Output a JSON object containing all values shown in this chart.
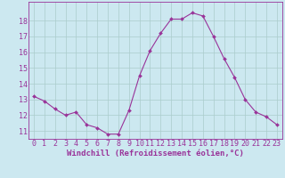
{
  "x": [
    0,
    1,
    2,
    3,
    4,
    5,
    6,
    7,
    8,
    9,
    10,
    11,
    12,
    13,
    14,
    15,
    16,
    17,
    18,
    19,
    20,
    21,
    22,
    23
  ],
  "y": [
    13.2,
    12.9,
    12.4,
    12.0,
    12.2,
    11.4,
    11.2,
    10.8,
    10.8,
    12.3,
    14.5,
    16.1,
    17.2,
    18.1,
    18.1,
    18.5,
    18.3,
    17.0,
    15.6,
    14.4,
    13.0,
    12.2,
    11.9,
    11.4
  ],
  "line_color": "#993399",
  "marker": "D",
  "marker_size": 2.0,
  "bg_color": "#cce8f0",
  "grid_color": "#aacccc",
  "axis_color": "#993399",
  "xlabel": "Windchill (Refroidissement éolien,°C)",
  "xlabel_fontsize": 6.5,
  "tick_fontsize": 6.0,
  "ylim": [
    10.5,
    19.2
  ],
  "yticks": [
    11,
    12,
    13,
    14,
    15,
    16,
    17,
    18
  ],
  "xlim": [
    -0.5,
    23.5
  ],
  "xticks": [
    0,
    1,
    2,
    3,
    4,
    5,
    6,
    7,
    8,
    9,
    10,
    11,
    12,
    13,
    14,
    15,
    16,
    17,
    18,
    19,
    20,
    21,
    22,
    23
  ]
}
